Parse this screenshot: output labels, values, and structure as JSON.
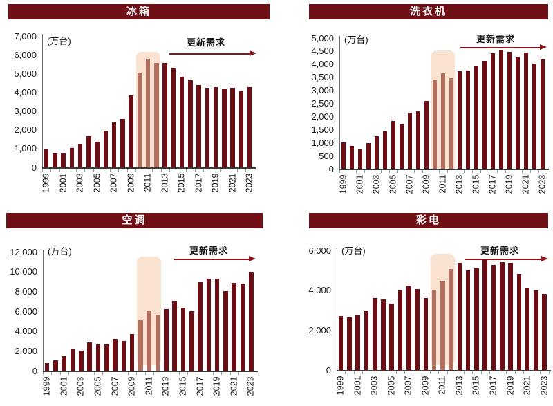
{
  "page": {
    "background": "#ffffff"
  },
  "colors": {
    "bar_dark": "#6B0D15",
    "bar_highlight": "#B26F60",
    "highlight_band": "#FAE2D0",
    "title_bar_bg": "#6E1016",
    "title_text": "#FFFFFF",
    "arrow": "#8E1318",
    "axis_text": "#1A1A1A",
    "annotation_text": "#1A1A1A"
  },
  "chart_data": [
    {
      "type": "bar",
      "title": "冰箱",
      "unit_label": "(万台)",
      "annotation": "更新需求",
      "ylim": [
        0,
        7000
      ],
      "ystep": 1000,
      "xtick_every": 2,
      "grid": false,
      "categories": [
        1999,
        2000,
        2001,
        2002,
        2003,
        2004,
        2005,
        2006,
        2007,
        2008,
        2009,
        2010,
        2011,
        2012,
        2013,
        2014,
        2015,
        2016,
        2017,
        2018,
        2019,
        2020,
        2021,
        2022,
        2023
      ],
      "values": [
        950,
        790,
        790,
        1020,
        1240,
        1670,
        1350,
        1940,
        2400,
        2570,
        3850,
        5040,
        5780,
        5560,
        5560,
        5270,
        4830,
        4660,
        4380,
        4250,
        4290,
        4210,
        4220,
        4040,
        4290
      ],
      "highlight_categories": [
        2010,
        2011,
        2012
      ]
    },
    {
      "type": "bar",
      "title": "洗衣机",
      "unit_label": "(万台)",
      "annotation": "更新需求",
      "ylim": [
        0,
        5000
      ],
      "ystep": 500,
      "xtick_every": 2,
      "grid": false,
      "categories": [
        1999,
        2000,
        2001,
        2002,
        2003,
        2004,
        2005,
        2006,
        2007,
        2008,
        2009,
        2010,
        2011,
        2012,
        2013,
        2014,
        2015,
        2016,
        2017,
        2018,
        2019,
        2020,
        2021,
        2022,
        2023
      ],
      "values": [
        1000,
        870,
        750,
        970,
        1240,
        1420,
        1830,
        1690,
        2140,
        2190,
        2600,
        3400,
        3640,
        3460,
        3720,
        3750,
        3920,
        4140,
        4430,
        4550,
        4480,
        4280,
        4450,
        4030,
        4170
      ],
      "highlight_categories": [
        2010,
        2011,
        2012
      ]
    },
    {
      "type": "bar",
      "title": "空调",
      "unit_label": "(万台)",
      "annotation": "更新需求",
      "ylim": [
        0,
        12000
      ],
      "ystep": 2000,
      "xtick_every": 2,
      "grid": false,
      "categories": [
        1999,
        2000,
        2001,
        2002,
        2003,
        2004,
        2005,
        2006,
        2007,
        2008,
        2009,
        2010,
        2011,
        2012,
        2013,
        2014,
        2015,
        2016,
        2017,
        2018,
        2019,
        2020,
        2021,
        2022,
        2023
      ],
      "values": [
        760,
        1060,
        1500,
        2210,
        2030,
        2860,
        2680,
        2680,
        3190,
        3000,
        3690,
        5090,
        6070,
        5670,
        6210,
        7020,
        6320,
        6000,
        8910,
        9290,
        9290,
        8030,
        8870,
        8800,
        9990
      ],
      "highlight_categories": [
        2010,
        2011,
        2012
      ]
    },
    {
      "type": "bar",
      "title": "彩电",
      "unit_label": "(万台)",
      "annotation": "更新需求",
      "ylim": [
        0,
        6000
      ],
      "ystep": 2000,
      "xtick_every": 2,
      "grid": false,
      "categories": [
        1999,
        2000,
        2001,
        2002,
        2003,
        2004,
        2005,
        2006,
        2007,
        2008,
        2009,
        2010,
        2011,
        2012,
        2013,
        2014,
        2015,
        2016,
        2017,
        2018,
        2019,
        2020,
        2021,
        2022,
        2023
      ],
      "values": [
        2690,
        2640,
        2740,
        3000,
        3610,
        3530,
        3320,
        3990,
        4240,
        4070,
        3610,
        4030,
        4460,
        5070,
        5360,
        5010,
        5100,
        5570,
        5280,
        5420,
        5370,
        4810,
        4140,
        3980,
        3800
      ],
      "highlight_categories": [
        2010,
        2011,
        2012
      ]
    }
  ]
}
